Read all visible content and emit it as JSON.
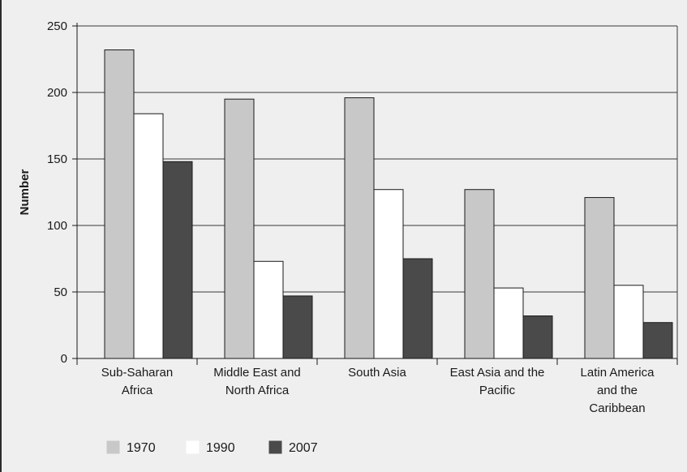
{
  "chart_data": {
    "type": "bar",
    "categories": [
      [
        "Sub-Saharan",
        "Africa"
      ],
      [
        "Middle East and",
        "North Africa"
      ],
      [
        "South Asia"
      ],
      [
        "East Asia and the",
        "Pacific"
      ],
      [
        "Latin America",
        "and the",
        "Caribbean"
      ]
    ],
    "series": [
      {
        "name": "1970",
        "values": [
          232,
          195,
          196,
          127,
          121
        ],
        "color": "#c8c8c8"
      },
      {
        "name": "1990",
        "values": [
          184,
          73,
          127,
          53,
          55
        ],
        "color": "#ffffff"
      },
      {
        "name": "2007",
        "values": [
          148,
          47,
          75,
          32,
          27
        ],
        "color": "#4a4a4a"
      }
    ],
    "xlabel": "",
    "ylabel": "Number",
    "ylim": [
      0,
      250
    ],
    "yticks": [
      0,
      50,
      100,
      150,
      200,
      250
    ],
    "grid": true,
    "legend_position": "bottom-left"
  }
}
